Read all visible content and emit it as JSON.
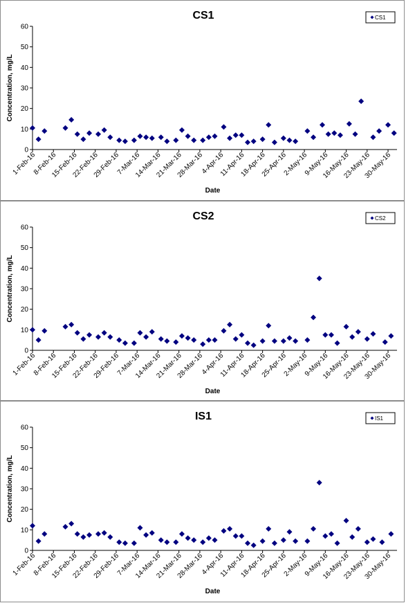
{
  "colors": {
    "marker": "#000080",
    "axis": "#000000",
    "border": "#8c8c8c"
  },
  "chart_data": [
    {
      "type": "scatter",
      "title": "CS1",
      "xlabel": "Date",
      "ylabel": "Concentration, mg/L",
      "ylim": [
        0,
        60
      ],
      "yticks": [
        0,
        10,
        20,
        30,
        40,
        50,
        60
      ],
      "xlim": [
        "2016-02-01",
        "2016-06-02"
      ],
      "xticks": [
        "1-Feb-16",
        "8-Feb-16",
        "15-Feb-16",
        "22-Feb-16",
        "29-Feb-16",
        "7-Mar-16",
        "14-Mar-16",
        "21-Mar-16",
        "28-Mar-16",
        "4-Apr-16",
        "11-Apr-16",
        "18-Apr-16",
        "25-Apr-16",
        "2-May-16",
        "9-May-16",
        "16-May-16",
        "23-May-16",
        "30-May-16"
      ],
      "grid": false,
      "legend_position": "top-right",
      "series": [
        {
          "name": "CS1",
          "points": [
            [
              "2016-02-01",
              10.5
            ],
            [
              "2016-02-03",
              5
            ],
            [
              "2016-02-05",
              9
            ],
            [
              "2016-02-12",
              10.5
            ],
            [
              "2016-02-14",
              14.5
            ],
            [
              "2016-02-16",
              7.5
            ],
            [
              "2016-02-18",
              5
            ],
            [
              "2016-02-20",
              8
            ],
            [
              "2016-02-23",
              7.5
            ],
            [
              "2016-02-25",
              9.5
            ],
            [
              "2016-02-27",
              6
            ],
            [
              "2016-03-01",
              4.5
            ],
            [
              "2016-03-03",
              4
            ],
            [
              "2016-03-06",
              4.5
            ],
            [
              "2016-03-08",
              6.5
            ],
            [
              "2016-03-10",
              6
            ],
            [
              "2016-03-12",
              5.5
            ],
            [
              "2016-03-15",
              6
            ],
            [
              "2016-03-17",
              4
            ],
            [
              "2016-03-20",
              4.5
            ],
            [
              "2016-03-22",
              9.5
            ],
            [
              "2016-03-24",
              6.5
            ],
            [
              "2016-03-26",
              4.5
            ],
            [
              "2016-03-29",
              4.5
            ],
            [
              "2016-03-31",
              6
            ],
            [
              "2016-04-02",
              6.5
            ],
            [
              "2016-04-05",
              11
            ],
            [
              "2016-04-07",
              5.5
            ],
            [
              "2016-04-09",
              7
            ],
            [
              "2016-04-11",
              7
            ],
            [
              "2016-04-13",
              3.5
            ],
            [
              "2016-04-15",
              4
            ],
            [
              "2016-04-18",
              5
            ],
            [
              "2016-04-20",
              12
            ],
            [
              "2016-04-22",
              3.5
            ],
            [
              "2016-04-25",
              5.5
            ],
            [
              "2016-04-27",
              4.5
            ],
            [
              "2016-04-29",
              4
            ],
            [
              "2016-05-03",
              9
            ],
            [
              "2016-05-05",
              6
            ],
            [
              "2016-05-08",
              12
            ],
            [
              "2016-05-10",
              7.5
            ],
            [
              "2016-05-12",
              8
            ],
            [
              "2016-05-14",
              7
            ],
            [
              "2016-05-17",
              12.5
            ],
            [
              "2016-05-19",
              7.5
            ],
            [
              "2016-05-21",
              23.5
            ],
            [
              "2016-05-25",
              6
            ],
            [
              "2016-05-27",
              9
            ],
            [
              "2016-05-30",
              12
            ],
            [
              "2016-06-01",
              8
            ]
          ]
        }
      ]
    },
    {
      "type": "scatter",
      "title": "CS2",
      "xlabel": "Date",
      "ylabel": "Concentration, mg/L",
      "ylim": [
        0,
        60
      ],
      "yticks": [
        0,
        10,
        20,
        30,
        40,
        50,
        60
      ],
      "xlim": [
        "2016-02-01",
        "2016-06-02"
      ],
      "xticks": [
        "1-Feb-16",
        "8-Feb-16",
        "15-Feb-16",
        "22-Feb-16",
        "29-Feb-16",
        "7-Mar-16",
        "14-Mar-16",
        "21-Mar-16",
        "28-Mar-16",
        "4-Apr-16",
        "11-Apr-16",
        "18-Apr-16",
        "25-Apr-16",
        "2-May-16",
        "9-May-16",
        "16-May-16",
        "23-May-16",
        "30-May-16"
      ],
      "grid": false,
      "legend_position": "top-right",
      "series": [
        {
          "name": "CS2",
          "points": [
            [
              "2016-02-01",
              10
            ],
            [
              "2016-02-03",
              5
            ],
            [
              "2016-02-05",
              9.5
            ],
            [
              "2016-02-12",
              11.5
            ],
            [
              "2016-02-14",
              12.5
            ],
            [
              "2016-02-16",
              8.5
            ],
            [
              "2016-02-18",
              5.5
            ],
            [
              "2016-02-20",
              7.5
            ],
            [
              "2016-02-23",
              6.5
            ],
            [
              "2016-02-25",
              8.5
            ],
            [
              "2016-02-27",
              6.5
            ],
            [
              "2016-03-01",
              5
            ],
            [
              "2016-03-03",
              3.5
            ],
            [
              "2016-03-06",
              3.5
            ],
            [
              "2016-03-08",
              8.5
            ],
            [
              "2016-03-10",
              6.5
            ],
            [
              "2016-03-12",
              9
            ],
            [
              "2016-03-15",
              5.5
            ],
            [
              "2016-03-17",
              4.5
            ],
            [
              "2016-03-20",
              4
            ],
            [
              "2016-03-22",
              7
            ],
            [
              "2016-03-24",
              6
            ],
            [
              "2016-03-26",
              5
            ],
            [
              "2016-03-29",
              3
            ],
            [
              "2016-03-31",
              5
            ],
            [
              "2016-04-02",
              5
            ],
            [
              "2016-04-05",
              9.5
            ],
            [
              "2016-04-07",
              12.5
            ],
            [
              "2016-04-09",
              5.5
            ],
            [
              "2016-04-11",
              7.5
            ],
            [
              "2016-04-13",
              3.5
            ],
            [
              "2016-04-15",
              2.5
            ],
            [
              "2016-04-18",
              4.5
            ],
            [
              "2016-04-20",
              12
            ],
            [
              "2016-04-22",
              4.5
            ],
            [
              "2016-04-25",
              4.5
            ],
            [
              "2016-04-27",
              6
            ],
            [
              "2016-04-29",
              4.5
            ],
            [
              "2016-05-03",
              5
            ],
            [
              "2016-05-05",
              16
            ],
            [
              "2016-05-07",
              35
            ],
            [
              "2016-05-09",
              7.5
            ],
            [
              "2016-05-11",
              7.5
            ],
            [
              "2016-05-13",
              3.5
            ],
            [
              "2016-05-16",
              11.5
            ],
            [
              "2016-05-18",
              6.5
            ],
            [
              "2016-05-20",
              9
            ],
            [
              "2016-05-23",
              5.5
            ],
            [
              "2016-05-25",
              8
            ],
            [
              "2016-05-29",
              4
            ],
            [
              "2016-05-31",
              7
            ]
          ]
        }
      ]
    },
    {
      "type": "scatter",
      "title": "IS1",
      "xlabel": "Date",
      "ylabel": "Concentration, mg/L",
      "ylim": [
        0,
        60
      ],
      "yticks": [
        0,
        10,
        20,
        30,
        40,
        50,
        60
      ],
      "xlim": [
        "2016-02-01",
        "2016-06-02"
      ],
      "xticks": [
        "1-Feb-16",
        "8-Feb-16",
        "15-Feb-16",
        "22-Feb-16",
        "29-Feb-16",
        "7-Mar-16",
        "14-Mar-16",
        "21-Mar-16",
        "28-Mar-16",
        "4-Apr-16",
        "11-Apr-16",
        "18-Apr-16",
        "25-Apr-16",
        "2-May-16",
        "9-May-16",
        "16-May-16",
        "23-May-16",
        "30-May-16"
      ],
      "grid": false,
      "legend_position": "top-right",
      "series": [
        {
          "name": "IS1",
          "points": [
            [
              "2016-02-01",
              12
            ],
            [
              "2016-02-03",
              4.5
            ],
            [
              "2016-02-05",
              8
            ],
            [
              "2016-02-12",
              11.5
            ],
            [
              "2016-02-14",
              13
            ],
            [
              "2016-02-16",
              8
            ],
            [
              "2016-02-18",
              6.5
            ],
            [
              "2016-02-20",
              7.5
            ],
            [
              "2016-02-23",
              8
            ],
            [
              "2016-02-25",
              8.5
            ],
            [
              "2016-02-27",
              6.5
            ],
            [
              "2016-03-01",
              4
            ],
            [
              "2016-03-03",
              3.5
            ],
            [
              "2016-03-06",
              3.5
            ],
            [
              "2016-03-08",
              11
            ],
            [
              "2016-03-10",
              7.5
            ],
            [
              "2016-03-12",
              8.5
            ],
            [
              "2016-03-15",
              5
            ],
            [
              "2016-03-17",
              4
            ],
            [
              "2016-03-20",
              4
            ],
            [
              "2016-03-22",
              8
            ],
            [
              "2016-03-24",
              6
            ],
            [
              "2016-03-26",
              5
            ],
            [
              "2016-03-29",
              4
            ],
            [
              "2016-03-31",
              6
            ],
            [
              "2016-04-02",
              5
            ],
            [
              "2016-04-05",
              9.5
            ],
            [
              "2016-04-07",
              10.5
            ],
            [
              "2016-04-09",
              7
            ],
            [
              "2016-04-11",
              7
            ],
            [
              "2016-04-13",
              3.5
            ],
            [
              "2016-04-15",
              2.5
            ],
            [
              "2016-04-18",
              4.5
            ],
            [
              "2016-04-20",
              10.5
            ],
            [
              "2016-04-22",
              3.5
            ],
            [
              "2016-04-25",
              5
            ],
            [
              "2016-04-27",
              9
            ],
            [
              "2016-04-29",
              4.5
            ],
            [
              "2016-05-03",
              4.5
            ],
            [
              "2016-05-05",
              10.5
            ],
            [
              "2016-05-07",
              33
            ],
            [
              "2016-05-09",
              7
            ],
            [
              "2016-05-11",
              8
            ],
            [
              "2016-05-13",
              3.5
            ],
            [
              "2016-05-16",
              14.5
            ],
            [
              "2016-05-18",
              6.5
            ],
            [
              "2016-05-20",
              10.5
            ],
            [
              "2016-05-23",
              4
            ],
            [
              "2016-05-25",
              5.5
            ],
            [
              "2016-05-28",
              4
            ],
            [
              "2016-05-31",
              8
            ]
          ]
        }
      ]
    }
  ]
}
